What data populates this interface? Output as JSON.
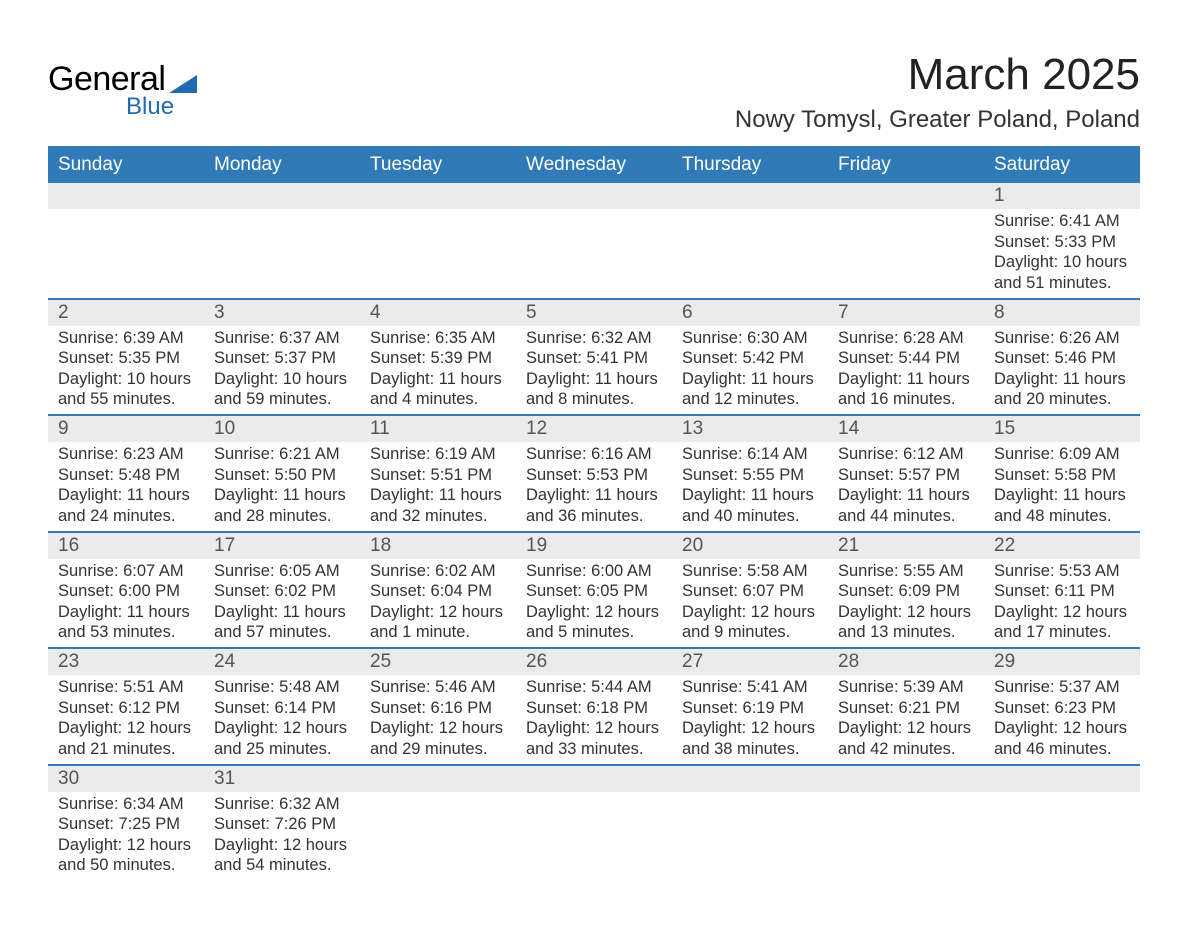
{
  "logo": {
    "text1": "General",
    "text2": "Blue"
  },
  "title": "March 2025",
  "location": "Nowy Tomysl, Greater Poland, Poland",
  "day_headers": [
    "Sunday",
    "Monday",
    "Tuesday",
    "Wednesday",
    "Thursday",
    "Friday",
    "Saturday"
  ],
  "colors": {
    "header_bg": "#2f7ab7",
    "header_text": "#ffffff",
    "row_border": "#2f7ab7",
    "daynum_bg": "#ebebeb",
    "body_text": "#333333",
    "logo_accent": "#1f6bb0"
  },
  "weeks": [
    [
      {
        "day": "",
        "sunrise": "",
        "sunset": "",
        "daylight": ""
      },
      {
        "day": "",
        "sunrise": "",
        "sunset": "",
        "daylight": ""
      },
      {
        "day": "",
        "sunrise": "",
        "sunset": "",
        "daylight": ""
      },
      {
        "day": "",
        "sunrise": "",
        "sunset": "",
        "daylight": ""
      },
      {
        "day": "",
        "sunrise": "",
        "sunset": "",
        "daylight": ""
      },
      {
        "day": "",
        "sunrise": "",
        "sunset": "",
        "daylight": ""
      },
      {
        "day": "1",
        "sunrise": "Sunrise: 6:41 AM",
        "sunset": "Sunset: 5:33 PM",
        "daylight": "Daylight: 10 hours and 51 minutes."
      }
    ],
    [
      {
        "day": "2",
        "sunrise": "Sunrise: 6:39 AM",
        "sunset": "Sunset: 5:35 PM",
        "daylight": "Daylight: 10 hours and 55 minutes."
      },
      {
        "day": "3",
        "sunrise": "Sunrise: 6:37 AM",
        "sunset": "Sunset: 5:37 PM",
        "daylight": "Daylight: 10 hours and 59 minutes."
      },
      {
        "day": "4",
        "sunrise": "Sunrise: 6:35 AM",
        "sunset": "Sunset: 5:39 PM",
        "daylight": "Daylight: 11 hours and 4 minutes."
      },
      {
        "day": "5",
        "sunrise": "Sunrise: 6:32 AM",
        "sunset": "Sunset: 5:41 PM",
        "daylight": "Daylight: 11 hours and 8 minutes."
      },
      {
        "day": "6",
        "sunrise": "Sunrise: 6:30 AM",
        "sunset": "Sunset: 5:42 PM",
        "daylight": "Daylight: 11 hours and 12 minutes."
      },
      {
        "day": "7",
        "sunrise": "Sunrise: 6:28 AM",
        "sunset": "Sunset: 5:44 PM",
        "daylight": "Daylight: 11 hours and 16 minutes."
      },
      {
        "day": "8",
        "sunrise": "Sunrise: 6:26 AM",
        "sunset": "Sunset: 5:46 PM",
        "daylight": "Daylight: 11 hours and 20 minutes."
      }
    ],
    [
      {
        "day": "9",
        "sunrise": "Sunrise: 6:23 AM",
        "sunset": "Sunset: 5:48 PM",
        "daylight": "Daylight: 11 hours and 24 minutes."
      },
      {
        "day": "10",
        "sunrise": "Sunrise: 6:21 AM",
        "sunset": "Sunset: 5:50 PM",
        "daylight": "Daylight: 11 hours and 28 minutes."
      },
      {
        "day": "11",
        "sunrise": "Sunrise: 6:19 AM",
        "sunset": "Sunset: 5:51 PM",
        "daylight": "Daylight: 11 hours and 32 minutes."
      },
      {
        "day": "12",
        "sunrise": "Sunrise: 6:16 AM",
        "sunset": "Sunset: 5:53 PM",
        "daylight": "Daylight: 11 hours and 36 minutes."
      },
      {
        "day": "13",
        "sunrise": "Sunrise: 6:14 AM",
        "sunset": "Sunset: 5:55 PM",
        "daylight": "Daylight: 11 hours and 40 minutes."
      },
      {
        "day": "14",
        "sunrise": "Sunrise: 6:12 AM",
        "sunset": "Sunset: 5:57 PM",
        "daylight": "Daylight: 11 hours and 44 minutes."
      },
      {
        "day": "15",
        "sunrise": "Sunrise: 6:09 AM",
        "sunset": "Sunset: 5:58 PM",
        "daylight": "Daylight: 11 hours and 48 minutes."
      }
    ],
    [
      {
        "day": "16",
        "sunrise": "Sunrise: 6:07 AM",
        "sunset": "Sunset: 6:00 PM",
        "daylight": "Daylight: 11 hours and 53 minutes."
      },
      {
        "day": "17",
        "sunrise": "Sunrise: 6:05 AM",
        "sunset": "Sunset: 6:02 PM",
        "daylight": "Daylight: 11 hours and 57 minutes."
      },
      {
        "day": "18",
        "sunrise": "Sunrise: 6:02 AM",
        "sunset": "Sunset: 6:04 PM",
        "daylight": "Daylight: 12 hours and 1 minute."
      },
      {
        "day": "19",
        "sunrise": "Sunrise: 6:00 AM",
        "sunset": "Sunset: 6:05 PM",
        "daylight": "Daylight: 12 hours and 5 minutes."
      },
      {
        "day": "20",
        "sunrise": "Sunrise: 5:58 AM",
        "sunset": "Sunset: 6:07 PM",
        "daylight": "Daylight: 12 hours and 9 minutes."
      },
      {
        "day": "21",
        "sunrise": "Sunrise: 5:55 AM",
        "sunset": "Sunset: 6:09 PM",
        "daylight": "Daylight: 12 hours and 13 minutes."
      },
      {
        "day": "22",
        "sunrise": "Sunrise: 5:53 AM",
        "sunset": "Sunset: 6:11 PM",
        "daylight": "Daylight: 12 hours and 17 minutes."
      }
    ],
    [
      {
        "day": "23",
        "sunrise": "Sunrise: 5:51 AM",
        "sunset": "Sunset: 6:12 PM",
        "daylight": "Daylight: 12 hours and 21 minutes."
      },
      {
        "day": "24",
        "sunrise": "Sunrise: 5:48 AM",
        "sunset": "Sunset: 6:14 PM",
        "daylight": "Daylight: 12 hours and 25 minutes."
      },
      {
        "day": "25",
        "sunrise": "Sunrise: 5:46 AM",
        "sunset": "Sunset: 6:16 PM",
        "daylight": "Daylight: 12 hours and 29 minutes."
      },
      {
        "day": "26",
        "sunrise": "Sunrise: 5:44 AM",
        "sunset": "Sunset: 6:18 PM",
        "daylight": "Daylight: 12 hours and 33 minutes."
      },
      {
        "day": "27",
        "sunrise": "Sunrise: 5:41 AM",
        "sunset": "Sunset: 6:19 PM",
        "daylight": "Daylight: 12 hours and 38 minutes."
      },
      {
        "day": "28",
        "sunrise": "Sunrise: 5:39 AM",
        "sunset": "Sunset: 6:21 PM",
        "daylight": "Daylight: 12 hours and 42 minutes."
      },
      {
        "day": "29",
        "sunrise": "Sunrise: 5:37 AM",
        "sunset": "Sunset: 6:23 PM",
        "daylight": "Daylight: 12 hours and 46 minutes."
      }
    ],
    [
      {
        "day": "30",
        "sunrise": "Sunrise: 6:34 AM",
        "sunset": "Sunset: 7:25 PM",
        "daylight": "Daylight: 12 hours and 50 minutes."
      },
      {
        "day": "31",
        "sunrise": "Sunrise: 6:32 AM",
        "sunset": "Sunset: 7:26 PM",
        "daylight": "Daylight: 12 hours and 54 minutes."
      },
      {
        "day": "",
        "sunrise": "",
        "sunset": "",
        "daylight": ""
      },
      {
        "day": "",
        "sunrise": "",
        "sunset": "",
        "daylight": ""
      },
      {
        "day": "",
        "sunrise": "",
        "sunset": "",
        "daylight": ""
      },
      {
        "day": "",
        "sunrise": "",
        "sunset": "",
        "daylight": ""
      },
      {
        "day": "",
        "sunrise": "",
        "sunset": "",
        "daylight": ""
      }
    ]
  ]
}
